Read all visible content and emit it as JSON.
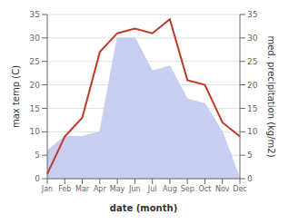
{
  "chart_data": {
    "type": "line",
    "xlabel": "date (month)",
    "ylabel": "max temp (C)",
    "y2label": "med. precipitation (kg/m2)",
    "categories": [
      "Jan",
      "Feb",
      "Mar",
      "Apr",
      "May",
      "Jun",
      "Jul",
      "Aug",
      "Sep",
      "Oct",
      "Nov",
      "Dec"
    ],
    "series": [
      {
        "type": "area",
        "axis": "y2",
        "color": "#c8cef0",
        "values": [
          6,
          9,
          9,
          10,
          30,
          30,
          23,
          24,
          17,
          16,
          10,
          0
        ]
      },
      {
        "type": "line",
        "color": "#c0392b",
        "values": [
          1,
          9,
          13,
          27,
          31,
          32,
          31,
          34,
          21,
          20,
          12,
          9
        ]
      }
    ],
    "ylim": [
      0,
      35
    ],
    "yticks": [
      0,
      5,
      10,
      15,
      20,
      25,
      30,
      35
    ],
    "y2lim": [
      0,
      35
    ],
    "y2ticks": [
      0,
      5,
      10,
      15,
      20,
      25,
      30,
      35
    ],
    "grid": true
  }
}
